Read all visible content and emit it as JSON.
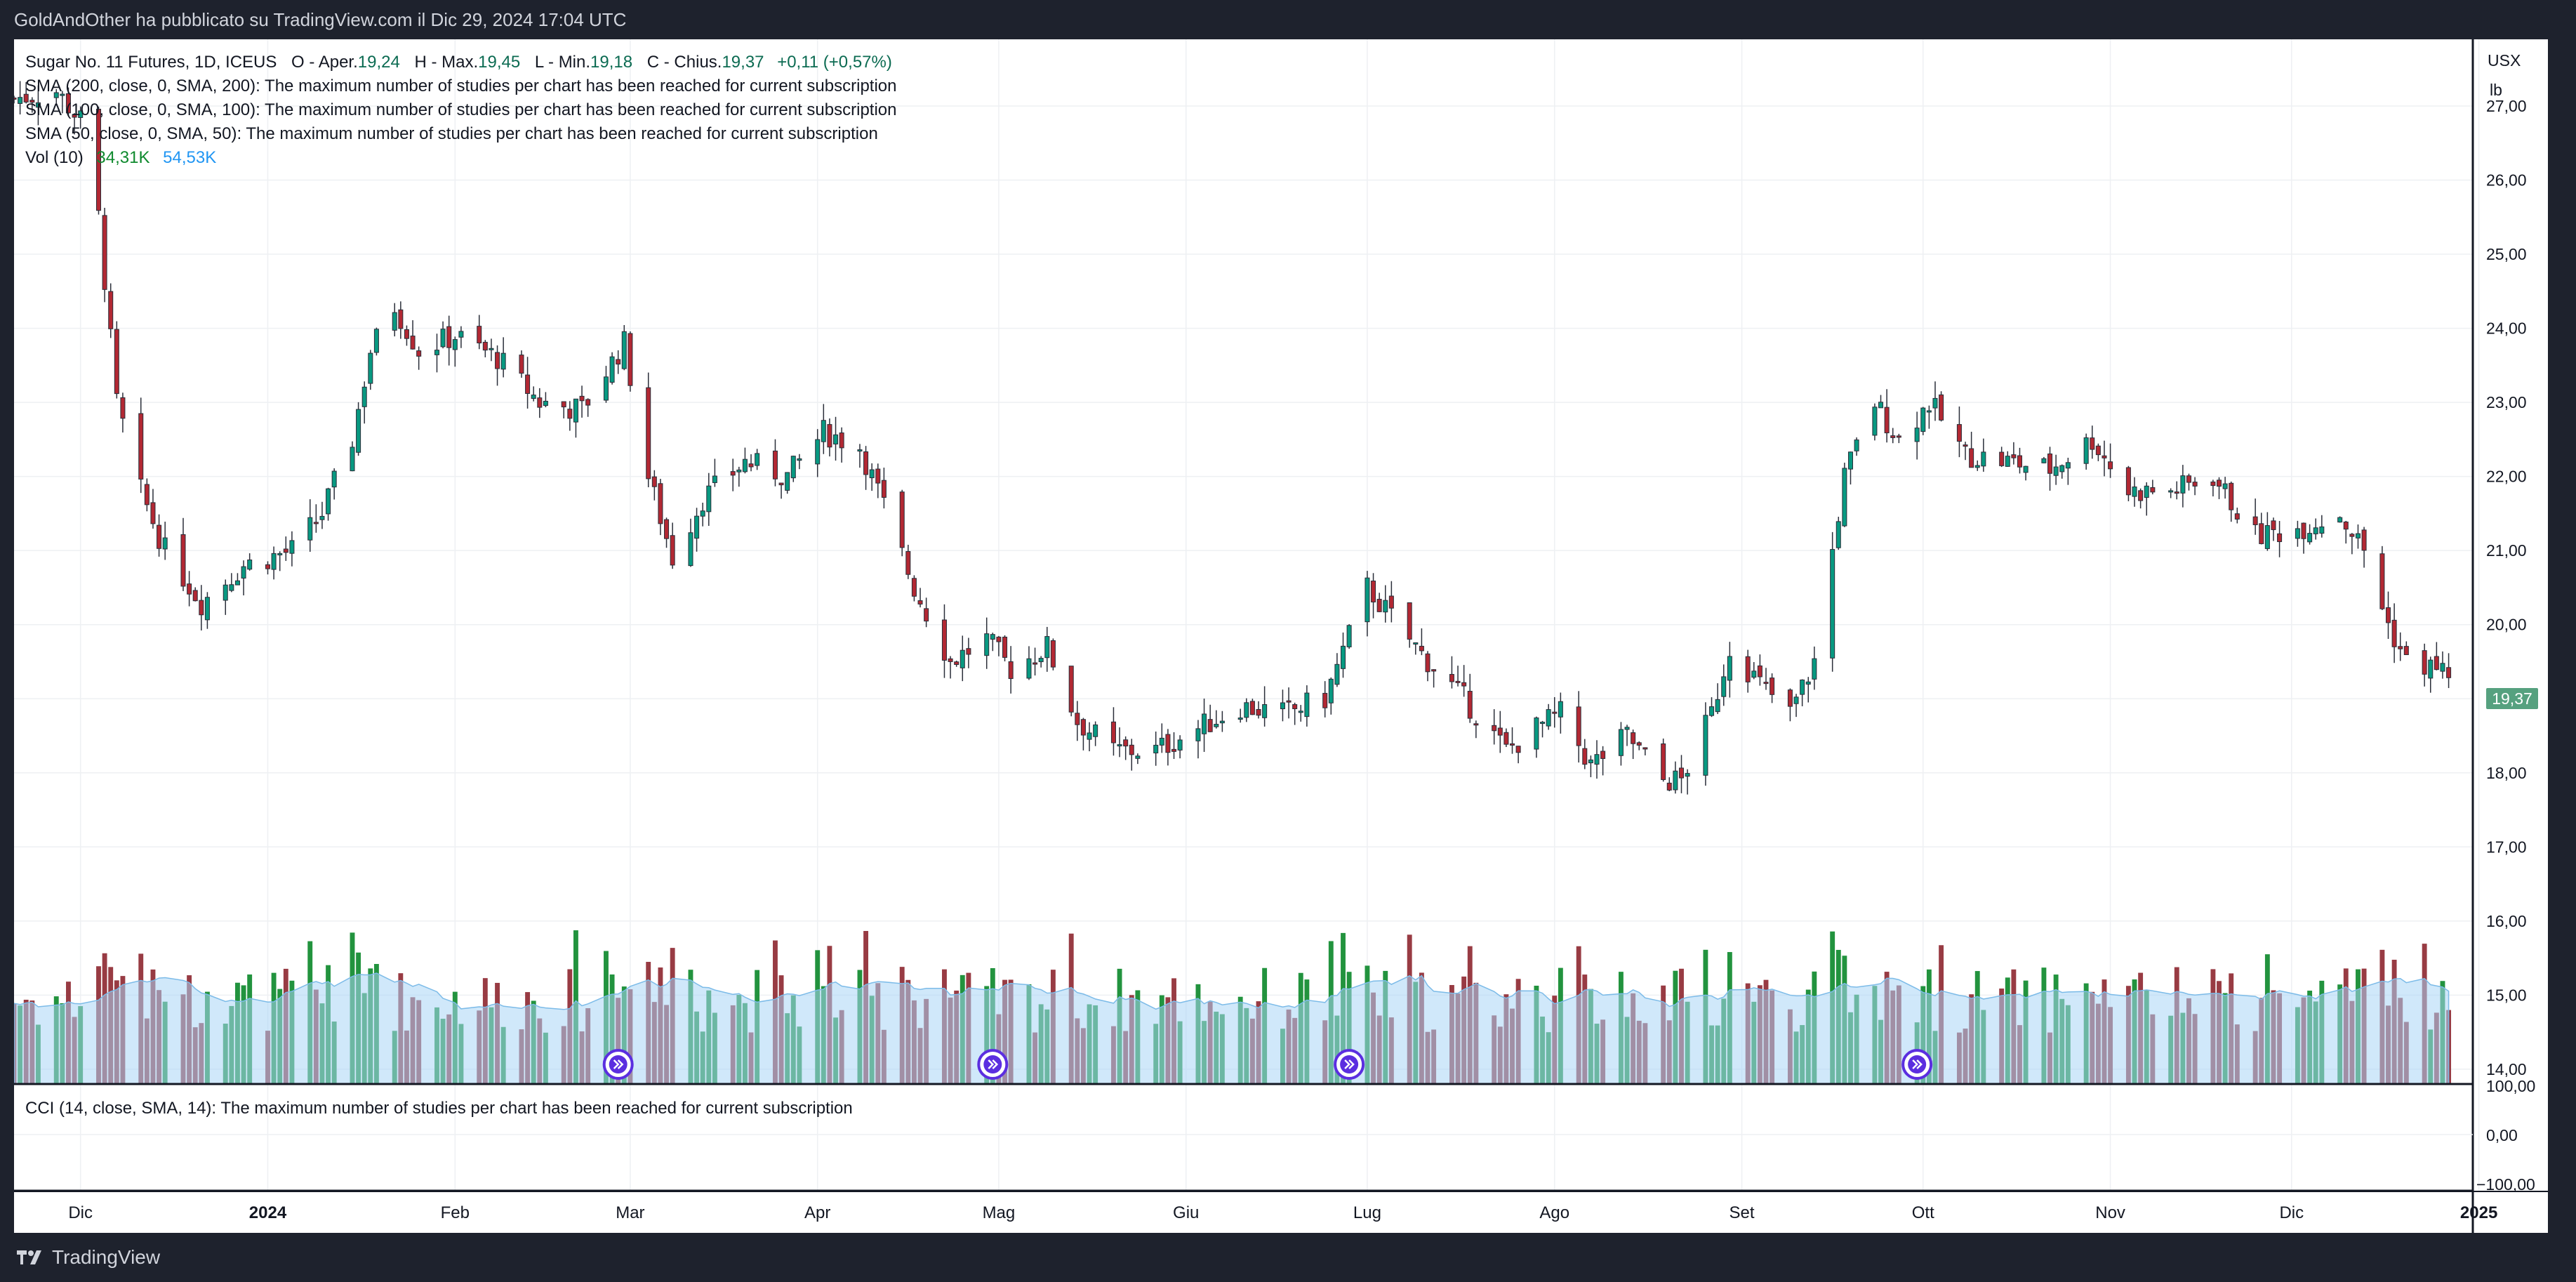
{
  "header": {
    "publish_line": "GoldAndOther ha pubblicato su TradingView.com il Dic 29, 2024 17:04 UTC"
  },
  "footer": {
    "brand": "TradingView"
  },
  "legend": {
    "symbol": "Sugar No. 11 Futures, 1D, ICEUS",
    "o_label": "O - Aper.",
    "o_value": "19,24",
    "h_label": "H - Max.",
    "h_value": "19,45",
    "l_label": "L - Min.",
    "l_value": "19,18",
    "c_label": "C - Chius.",
    "c_value": "19,37",
    "change": "+0,11 (+0,57%)",
    "sma200": "SMA (200, close, 0, SMA, 200): The maximum number of studies per chart has been reached for current subscription",
    "sma100": "SMA (100, close, 0, SMA, 100): The maximum number of studies per chart has been reached for current subscription",
    "sma50": "SMA (50, close, 0, SMA, 50): The maximum number of studies per chart has been reached for current subscription",
    "vol_label": "Vol (10)",
    "vol_value": "34,31K",
    "vol_ma_value": "54,53K",
    "cci": "CCI (14, close, SMA, 14): The maximum number of studies per chart has been reached for current subscription"
  },
  "price_axis": {
    "currency": "USX",
    "unit": "lb",
    "ticks": [
      "27,00",
      "26,00",
      "25,00",
      "24,00",
      "23,00",
      "22,00",
      "21,00",
      "20,00",
      "19,00",
      "18,00",
      "17,00",
      "16,00",
      "15,00",
      "14,00"
    ],
    "last_price": "19,37"
  },
  "cci_axis": {
    "ticks": [
      "100,00",
      "0,00",
      "−100,00"
    ]
  },
  "time_axis": {
    "labels": [
      "Dic",
      "2024",
      "Feb",
      "Mar",
      "Apr",
      "Mag",
      "Giu",
      "Lug",
      "Ago",
      "Set",
      "Ott",
      "Nov",
      "Dic",
      "2025"
    ]
  },
  "colors": {
    "up": "#089981",
    "down": "#b22833",
    "vol_up": "#0f8a2e",
    "vol_down": "#8f2a33",
    "vol_ma_fill": "#a9d6f5",
    "last_price_bg": "#56a17f",
    "grid": "#eef0f3",
    "event_marker": "#5b2ee0"
  },
  "chart_data": {
    "type": "candlestick",
    "title": "Sugar No. 11 Futures, 1D, ICEUS",
    "y_unit": "USX/lb",
    "ylim": [
      13.8,
      27.9
    ],
    "x_range": [
      "2023-11-20",
      "2024-12-31"
    ],
    "grid": true,
    "volume_series": "Vol (10)",
    "close_path": [
      [
        "2023-11-20",
        27.1
      ],
      [
        "2023-11-27",
        27.2
      ],
      [
        "2023-12-01",
        26.8
      ],
      [
        "2023-12-04",
        25.5
      ],
      [
        "2023-12-07",
        23.0
      ],
      [
        "2023-12-11",
        21.8
      ],
      [
        "2023-12-15",
        21.0
      ],
      [
        "2023-12-21",
        20.3
      ],
      [
        "2023-12-28",
        20.8
      ],
      [
        "2024-01-05",
        21.0
      ],
      [
        "2024-01-10",
        21.5
      ],
      [
        "2024-01-15",
        22.5
      ],
      [
        "2024-01-18",
        23.7
      ],
      [
        "2024-01-22",
        24.3
      ],
      [
        "2024-01-26",
        23.7
      ],
      [
        "2024-02-01",
        23.9
      ],
      [
        "2024-02-08",
        23.6
      ],
      [
        "2024-02-15",
        23.0
      ],
      [
        "2024-02-22",
        22.9
      ],
      [
        "2024-02-29",
        23.8
      ],
      [
        "2024-03-04",
        22.0
      ],
      [
        "2024-03-08",
        20.9
      ],
      [
        "2024-03-13",
        21.7
      ],
      [
        "2024-03-20",
        22.2
      ],
      [
        "2024-03-27",
        22.0
      ],
      [
        "2024-04-02",
        22.6
      ],
      [
        "2024-04-08",
        22.4
      ],
      [
        "2024-04-12",
        21.6
      ],
      [
        "2024-04-17",
        20.5
      ],
      [
        "2024-04-23",
        19.5
      ],
      [
        "2024-04-29",
        19.8
      ],
      [
        "2024-05-03",
        19.4
      ],
      [
        "2024-05-09",
        19.7
      ],
      [
        "2024-05-14",
        18.7
      ],
      [
        "2024-05-20",
        18.3
      ],
      [
        "2024-05-27",
        18.3
      ],
      [
        "2024-06-03",
        18.6
      ],
      [
        "2024-06-10",
        18.9
      ],
      [
        "2024-06-17",
        18.8
      ],
      [
        "2024-06-24",
        19.0
      ],
      [
        "2024-07-01",
        20.5
      ],
      [
        "2024-07-05",
        20.1
      ],
      [
        "2024-07-10",
        19.6
      ],
      [
        "2024-07-17",
        19.0
      ],
      [
        "2024-07-24",
        18.3
      ],
      [
        "2024-07-29",
        18.6
      ],
      [
        "2024-08-02",
        18.8
      ],
      [
        "2024-08-07",
        18.1
      ],
      [
        "2024-08-13",
        18.5
      ],
      [
        "2024-08-19",
        17.9
      ],
      [
        "2024-08-22",
        17.9
      ],
      [
        "2024-08-27",
        18.8
      ],
      [
        "2024-08-30",
        19.7
      ],
      [
        "2024-09-04",
        19.2
      ],
      [
        "2024-09-09",
        18.8
      ],
      [
        "2024-09-13",
        19.5
      ],
      [
        "2024-09-18",
        22.0
      ],
      [
        "2024-09-23",
        23.0
      ],
      [
        "2024-09-27",
        22.5
      ],
      [
        "2024-10-02",
        23.0
      ],
      [
        "2024-10-08",
        22.3
      ],
      [
        "2024-10-15",
        22.2
      ],
      [
        "2024-10-22",
        22.1
      ],
      [
        "2024-10-29",
        22.5
      ],
      [
        "2024-11-04",
        21.8
      ],
      [
        "2024-11-11",
        21.8
      ],
      [
        "2024-11-18",
        22.0
      ],
      [
        "2024-11-25",
        21.2
      ],
      [
        "2024-12-02",
        21.3
      ],
      [
        "2024-12-09",
        21.5
      ],
      [
        "2024-12-13",
        21.0
      ],
      [
        "2024-12-17",
        20.0
      ],
      [
        "2024-12-20",
        19.5
      ],
      [
        "2024-12-27",
        19.37
      ]
    ]
  }
}
